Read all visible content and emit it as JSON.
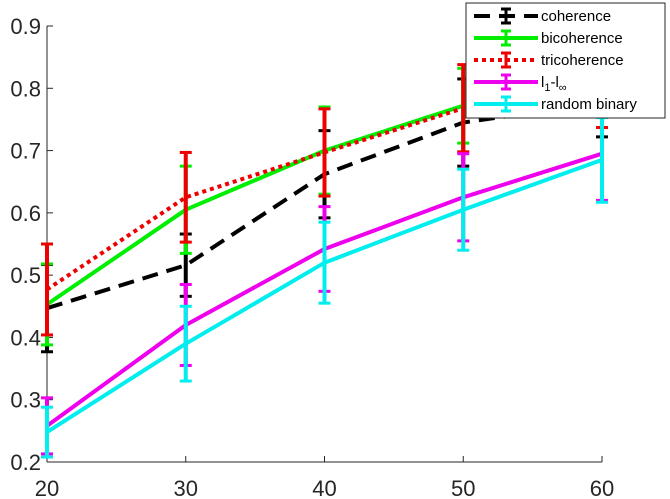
{
  "chart_data": {
    "type": "line",
    "title": "",
    "xlabel": "",
    "ylabel": "",
    "x": [
      20,
      30,
      40,
      50,
      60
    ],
    "xlim": [
      20,
      60
    ],
    "ylim": [
      0.2,
      0.9
    ],
    "xticks": [
      20,
      30,
      40,
      50,
      60
    ],
    "yticks": [
      0.2,
      0.3,
      0.4,
      0.5,
      0.6,
      0.7,
      0.8,
      0.9
    ],
    "grid": false,
    "legend_position": "top-right",
    "series": [
      {
        "name": "coherence",
        "color": "#000000",
        "line_style": "dashed",
        "values": [
          0.447,
          0.516,
          0.662,
          0.745,
          0.777
        ],
        "errors": [
          0.07,
          0.05,
          0.07,
          0.07,
          0.055
        ]
      },
      {
        "name": "bicoherence",
        "color": "#00ee00",
        "line_style": "solid",
        "values": [
          0.453,
          0.605,
          0.7,
          0.772,
          0.782
        ],
        "errors": [
          0.065,
          0.07,
          0.07,
          0.06,
          0.045
        ]
      },
      {
        "name": "tricoherence",
        "color": "#ee0000",
        "line_style": "dotted",
        "values": [
          0.477,
          0.625,
          0.697,
          0.768,
          0.782
        ],
        "errors": [
          0.073,
          0.072,
          0.07,
          0.07,
          0.045
        ]
      },
      {
        "name": "l1-l∞",
        "color": "#ee00ee",
        "line_style": "solid",
        "values": [
          0.258,
          0.42,
          0.542,
          0.625,
          0.695
        ],
        "errors": [
          0.045,
          0.065,
          0.068,
          0.07,
          0.075
        ]
      },
      {
        "name": "random binary",
        "color": "#00eeee",
        "line_style": "solid",
        "values": [
          0.248,
          0.39,
          0.52,
          0.605,
          0.685
        ],
        "errors": [
          0.04,
          0.06,
          0.065,
          0.065,
          0.068
        ]
      }
    ]
  }
}
